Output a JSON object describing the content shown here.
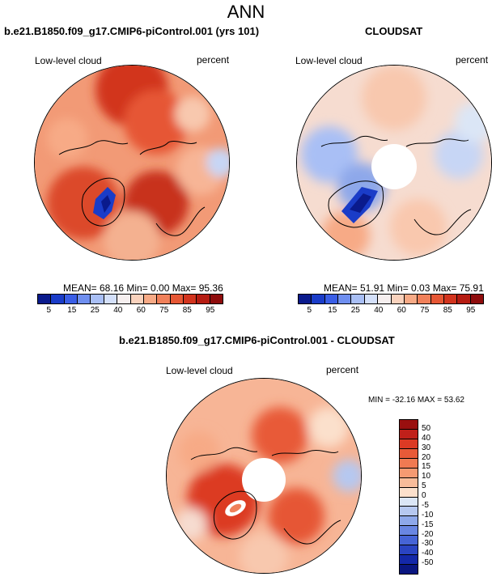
{
  "figure": {
    "title": "ANN"
  },
  "panels": {
    "top_left": {
      "title": "b.e21.B1850.f09_g17.CMIP6-piControl.001 (yrs 101)",
      "left_label": "Low-level cloud",
      "right_label": "percent",
      "stats": "MEAN=  68.16  Min=   0.00  Max=  95.36"
    },
    "top_right": {
      "title": "CLOUDSAT",
      "left_label": "Low-level cloud",
      "right_label": "percent",
      "stats": "MEAN=  51.91  Min=   0.03  Max=  75.91"
    },
    "bottom": {
      "title": "b.e21.B1850.f09_g17.CMIP6-piControl.001 - CLOUDSAT",
      "left_label": "Low-level cloud",
      "right_label": "percent",
      "stats": "MIN = -32.16 MAX =  53.62"
    }
  },
  "colorbars": {
    "abs": {
      "labels": [
        "5",
        "15",
        "25",
        "40",
        "60",
        "75",
        "85",
        "95"
      ],
      "colors": [
        "#0a1a8c",
        "#1a3cc8",
        "#3a5ee6",
        "#6f8ff0",
        "#a9bff5",
        "#d4e0fa",
        "#f6efef",
        "#f9d2bd",
        "#f7aa86",
        "#f0805a",
        "#e65735",
        "#d2341e",
        "#b51c12",
        "#8e0c0c"
      ]
    },
    "diff": {
      "labels": [
        "50",
        "40",
        "30",
        "20",
        "15",
        "10",
        "5",
        "0",
        "-5",
        "-10",
        "-15",
        "-20",
        "-30",
        "-40",
        "-50"
      ],
      "colors": [
        "#9a0f0f",
        "#c0201a",
        "#dc3a24",
        "#e85a38",
        "#f07a52",
        "#f59a72",
        "#f8bc9a",
        "#fbe0cc",
        "#dbe6f6",
        "#b6c8f0",
        "#8ea8ea",
        "#6986e2",
        "#4664d6",
        "#2a44c2",
        "#1428a8",
        "#0a1680"
      ]
    }
  }
}
